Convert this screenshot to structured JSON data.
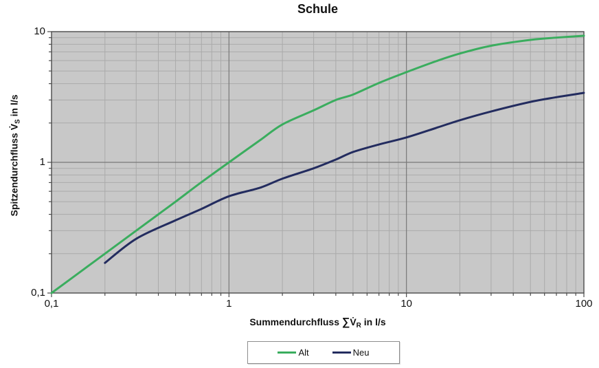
{
  "title": "Schule",
  "axes": {
    "y_label": {
      "prefix": "Spitzendurchfluss ",
      "symbol": "V̇",
      "sub": "S",
      "suffix": " in l/s"
    },
    "x_label": {
      "prefix": "Summendurchfluss ",
      "sigma": "∑",
      "symbol": "V̇",
      "sub": "R",
      "suffix": " in l/s"
    }
  },
  "legend": {
    "items": [
      {
        "label": "Alt",
        "color": "#3aad5e"
      },
      {
        "label": "Neu",
        "color": "#232c5f"
      }
    ]
  },
  "chart_data": {
    "type": "line",
    "title": "Schule",
    "xlabel": "Summendurchfluss ∑V̇R in l/s",
    "ylabel": "Spitzendurchfluss V̇S in l/s",
    "x_scale": "log",
    "y_scale": "log",
    "xlim": [
      0.1,
      100
    ],
    "ylim": [
      0.1,
      10
    ],
    "grid": "major+minor",
    "legend_position": "bottom",
    "x_ticks": [
      {
        "value": 0.1,
        "label": "0,1"
      },
      {
        "value": 1,
        "label": "1"
      },
      {
        "value": 10,
        "label": "10"
      },
      {
        "value": 100,
        "label": "100"
      }
    ],
    "y_ticks": [
      {
        "value": 0.1,
        "label": "0,1"
      },
      {
        "value": 1,
        "label": "1"
      },
      {
        "value": 10,
        "label": "10"
      }
    ],
    "series": [
      {
        "name": "Alt",
        "color": "#3aad5e",
        "points": [
          [
            0.1,
            0.1
          ],
          [
            0.15,
            0.15
          ],
          [
            0.2,
            0.2
          ],
          [
            0.3,
            0.3
          ],
          [
            0.4,
            0.4
          ],
          [
            0.5,
            0.5
          ],
          [
            0.7,
            0.705
          ],
          [
            1,
            1.0
          ],
          [
            1.5,
            1.48
          ],
          [
            2,
            1.95
          ],
          [
            3,
            2.5
          ],
          [
            4,
            3.0
          ],
          [
            5,
            3.3
          ],
          [
            7,
            4.05
          ],
          [
            10,
            4.9
          ],
          [
            15,
            6.0
          ],
          [
            20,
            6.8
          ],
          [
            30,
            7.8
          ],
          [
            50,
            8.65
          ],
          [
            70,
            9.0
          ],
          [
            100,
            9.3
          ]
        ]
      },
      {
        "name": "Neu",
        "color": "#232c5f",
        "points": [
          [
            0.2,
            0.17
          ],
          [
            0.3,
            0.26
          ],
          [
            0.5,
            0.36
          ],
          [
            0.7,
            0.44
          ],
          [
            1,
            0.55
          ],
          [
            1.5,
            0.64
          ],
          [
            2,
            0.75
          ],
          [
            3,
            0.9
          ],
          [
            4,
            1.05
          ],
          [
            5,
            1.2
          ],
          [
            7,
            1.37
          ],
          [
            10,
            1.55
          ],
          [
            15,
            1.85
          ],
          [
            20,
            2.1
          ],
          [
            30,
            2.45
          ],
          [
            50,
            2.9
          ],
          [
            70,
            3.15
          ],
          [
            100,
            3.4
          ]
        ]
      }
    ],
    "colors": {
      "plot_bg": "#c8c8c8",
      "grid_minor": "#aaaaaa",
      "grid_major": "#787878",
      "border": "#4a4a4a",
      "tick": "#4a4a4a"
    }
  }
}
